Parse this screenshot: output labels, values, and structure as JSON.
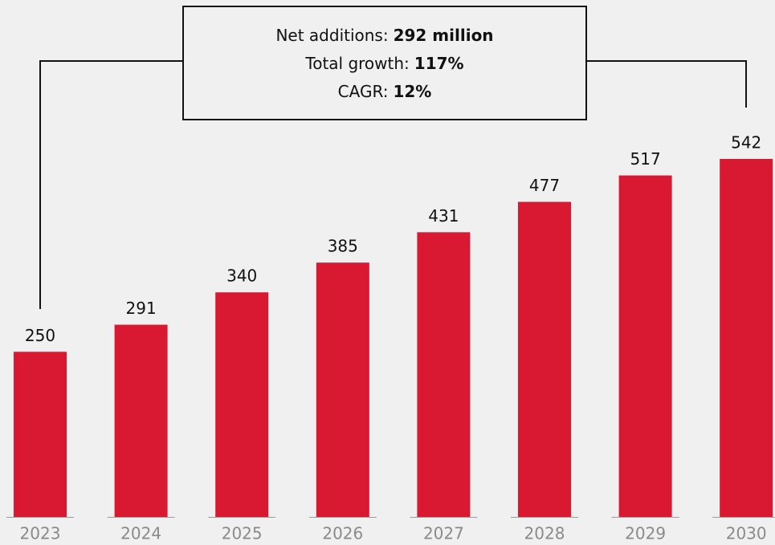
{
  "chart_data": {
    "type": "bar",
    "categories": [
      "2023",
      "2024",
      "2025",
      "2026",
      "2027",
      "2028",
      "2029",
      "2030"
    ],
    "values": [
      250,
      291,
      340,
      385,
      431,
      477,
      517,
      542
    ],
    "color": "#d81931",
    "annotation": [
      {
        "label": "Net additions:",
        "value": "292 million"
      },
      {
        "label": "Total growth:",
        "value": "117%"
      },
      {
        "label": "CAGR:",
        "value": "12%"
      }
    ]
  }
}
